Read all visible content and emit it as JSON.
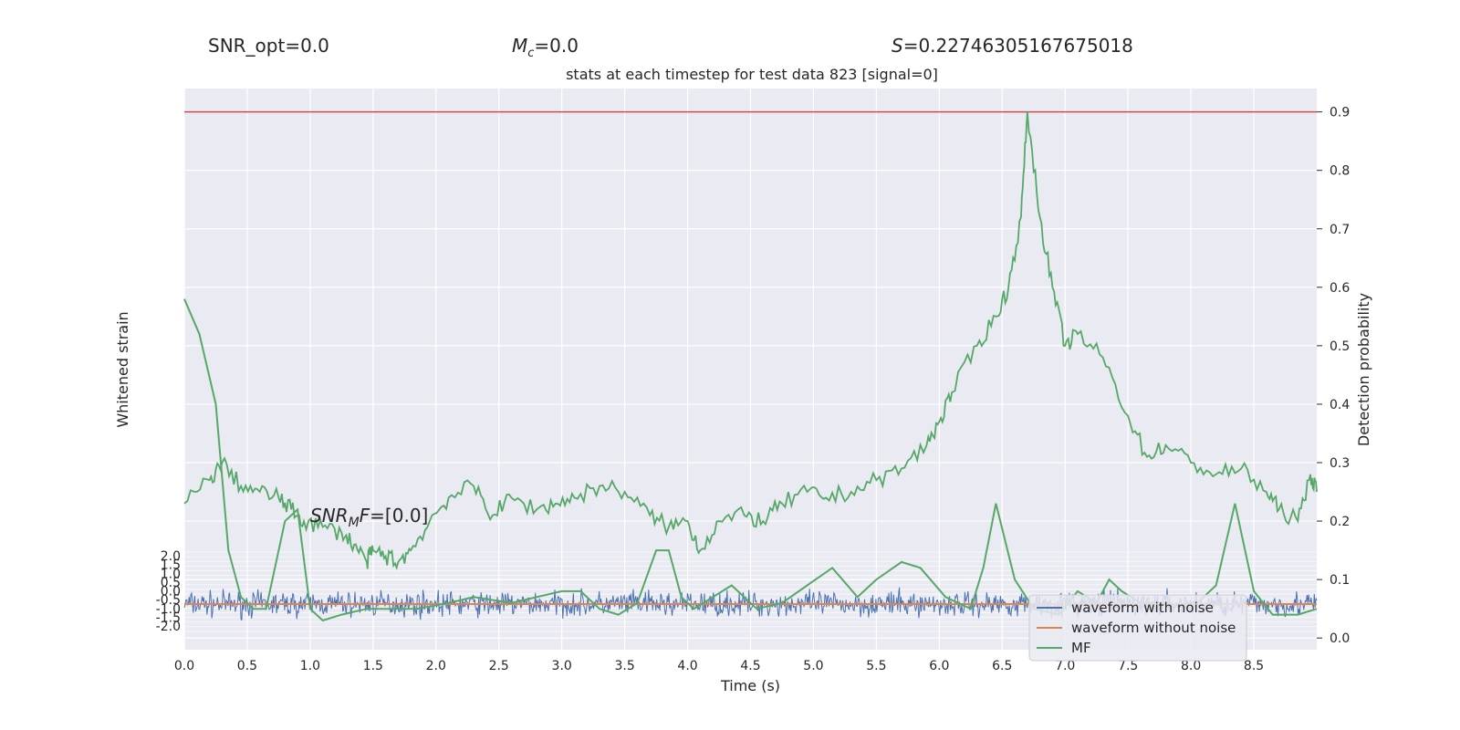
{
  "header": {
    "snr_opt": "SNR_opt=0.0",
    "mc_symbol": "M",
    "mc_sub": "c",
    "mc_value": "=0.0",
    "s_symbol": "S",
    "s_value": "=0.22746305167675018"
  },
  "colors": {
    "background": "#eaeaf2",
    "grid": "#ffffff",
    "noisy": "#4c72b0",
    "clean": "#dd8452",
    "mf": "#55a868",
    "threshold": "#c44e52"
  },
  "chart_data": {
    "type": "line",
    "title": "stats at each timestep for test data 823 [signal=0]",
    "xlabel": "Time (s)",
    "ylabel_left": "Whitened strain",
    "ylabel_right": "Detection probability",
    "xlim": [
      0,
      9
    ],
    "x_ticks": [
      "0.0",
      "0.5",
      "1.0",
      "1.5",
      "2.0",
      "2.5",
      "3.0",
      "3.5",
      "4.0",
      "4.5",
      "5.0",
      "5.5",
      "6.0",
      "6.5",
      "7.0",
      "7.5",
      "8.0",
      "8.5"
    ],
    "ylim_right": [
      -0.02,
      0.94
    ],
    "y_ticks_right": [
      "0.0",
      "0.1",
      "0.2",
      "0.3",
      "0.4",
      "0.5",
      "0.6",
      "0.7",
      "0.8",
      "0.9"
    ],
    "threshold": 0.9,
    "annotation": {
      "prefix": "SNR",
      "sub": "M",
      "mid": "F",
      "value": "=[0.0]"
    },
    "legend": [
      "waveform with noise",
      "waveform without noise",
      "MF"
    ],
    "legend_position": "lower-right",
    "grid": true,
    "left_axis_tick_labels": [
      "2.0",
      "1.5",
      "1.0",
      "0.5",
      "0.0",
      "-0.5",
      "-1.0",
      "-1.5",
      "-2.0"
    ],
    "detection_probability": {
      "x": [
        0.0,
        0.2,
        0.3,
        0.45,
        0.6,
        0.75,
        0.85,
        0.95,
        1.1,
        1.25,
        1.35,
        1.45,
        1.5,
        1.6,
        1.7,
        1.8,
        1.95,
        2.1,
        2.3,
        2.45,
        2.6,
        2.8,
        2.95,
        3.1,
        3.3,
        3.5,
        3.7,
        3.85,
        4.0,
        4.1,
        4.25,
        4.45,
        4.6,
        4.75,
        4.95,
        5.1,
        5.3,
        5.5,
        5.7,
        5.9,
        6.0,
        6.1,
        6.3,
        6.45,
        6.55,
        6.65,
        6.7,
        6.8,
        6.9,
        7.0,
        7.1,
        7.3,
        7.5,
        7.65,
        7.8,
        8.0,
        8.2,
        8.4,
        8.6,
        8.7,
        8.85,
        8.95,
        9.0
      ],
      "y": [
        0.23,
        0.27,
        0.3,
        0.26,
        0.25,
        0.24,
        0.22,
        0.2,
        0.19,
        0.18,
        0.16,
        0.13,
        0.15,
        0.14,
        0.13,
        0.15,
        0.2,
        0.24,
        0.26,
        0.21,
        0.24,
        0.22,
        0.23,
        0.24,
        0.26,
        0.25,
        0.21,
        0.19,
        0.2,
        0.15,
        0.2,
        0.21,
        0.2,
        0.23,
        0.25,
        0.24,
        0.25,
        0.27,
        0.29,
        0.33,
        0.37,
        0.42,
        0.5,
        0.55,
        0.6,
        0.72,
        0.9,
        0.72,
        0.6,
        0.5,
        0.52,
        0.48,
        0.38,
        0.31,
        0.33,
        0.3,
        0.28,
        0.29,
        0.25,
        0.22,
        0.2,
        0.28,
        0.25
      ]
    },
    "mf": {
      "x": [
        0.0,
        0.12,
        0.25,
        0.35,
        0.45,
        0.55,
        0.65,
        0.8,
        0.9,
        1.0,
        1.1,
        1.25,
        1.45,
        1.65,
        1.85,
        2.1,
        2.3,
        2.6,
        2.8,
        3.0,
        3.15,
        3.3,
        3.45,
        3.6,
        3.75,
        3.85,
        3.95,
        4.05,
        4.2,
        4.35,
        4.55,
        4.75,
        4.95,
        5.15,
        5.35,
        5.5,
        5.7,
        5.85,
        6.05,
        6.25,
        6.35,
        6.45,
        6.6,
        6.75,
        6.95,
        7.1,
        7.25,
        7.35,
        7.45,
        7.6,
        7.8,
        8.0,
        8.2,
        8.35,
        8.5,
        8.65,
        8.85,
        9.0
      ],
      "y": [
        0.58,
        0.52,
        0.4,
        0.15,
        0.07,
        0.05,
        0.05,
        0.2,
        0.22,
        0.05,
        0.03,
        0.04,
        0.05,
        0.05,
        0.05,
        0.06,
        0.07,
        0.06,
        0.07,
        0.08,
        0.08,
        0.05,
        0.04,
        0.06,
        0.15,
        0.15,
        0.07,
        0.05,
        0.07,
        0.09,
        0.05,
        0.06,
        0.09,
        0.12,
        0.07,
        0.1,
        0.13,
        0.12,
        0.07,
        0.05,
        0.12,
        0.23,
        0.1,
        0.05,
        0.04,
        0.08,
        0.06,
        0.1,
        0.08,
        0.06,
        0.06,
        0.05,
        0.09,
        0.23,
        0.08,
        0.04,
        0.04,
        0.05
      ]
    },
    "noisy_waveform": {
      "mean": 0.0,
      "amplitude": 0.5
    },
    "clean_waveform": {
      "value": 0.0
    }
  }
}
